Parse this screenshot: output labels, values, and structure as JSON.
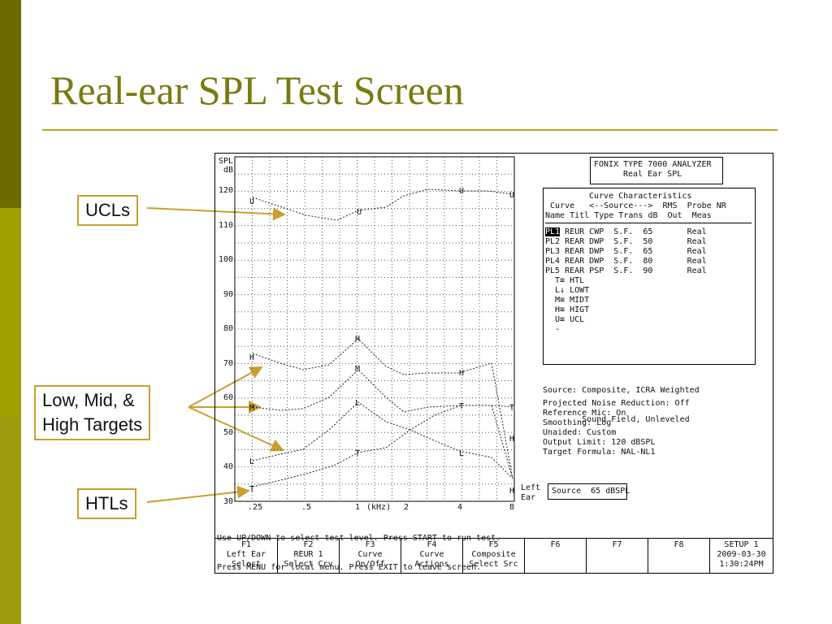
{
  "slide": {
    "title": "Real-ear SPL Test Screen",
    "accent_color": "#7a7a12",
    "callouts": {
      "ucls": "UCLs",
      "targets_line1": "Low, Mid, &",
      "targets_line2": "High Targets",
      "htls": "HTLs"
    }
  },
  "analyzer": {
    "header_line1": "FONIX TYPE 7000 ANALYZER",
    "header_line2": "Real Ear SPL",
    "y_axis": {
      "unit_line1": "SPL",
      "unit_line2": "dB",
      "ticks": [
        "120",
        "110",
        "100",
        "90",
        "80",
        "70",
        "60",
        "50",
        "40",
        "30"
      ]
    },
    "x_axis": {
      "ticks": [
        ".25",
        ".5",
        "1",
        "2",
        "4",
        "8"
      ],
      "unit": "(kHz)"
    },
    "curve_characteristics": {
      "title": "Curve Characteristics",
      "header_line1": " Curve   <--Source--->  RMS  Probe NR",
      "header_line2": "Name Titl Type Trans dB  Out  Meas",
      "rows": [
        {
          "name": "PL1",
          "rest": " REUR CWP  S.F.  65       Real"
        },
        {
          "name": "PL2",
          "rest": " REAR DWP  S.F.  50       Real"
        },
        {
          "name": "PL3",
          "rest": " REAR DWP  S.F.  65       Real"
        },
        {
          "name": "PL4",
          "rest": " REAR DWP  S.F.  80       Real"
        },
        {
          "name": "PL5",
          "rest": " REAR PSP  S.F.  90       Real"
        }
      ],
      "legend": [
        "  T≡ HTL",
        "  L↓ LOWT",
        "  M≡ MIDT",
        "  H≡ HIGT",
        "  U≡ UCL",
        "  -"
      ]
    },
    "source_lines": [
      "Source: Composite, ICRA Weighted",
      "        Sound Field, Unleveled"
    ],
    "settings": [
      "Projected Noise Reduction: Off",
      "Reference Mic: On",
      "Smoothing: Log",
      "Unaided: Custom",
      "Output Limit: 120 dBSPL",
      "Target Formula: NAL-NL1"
    ],
    "left_ear": [
      "Left",
      "Ear"
    ],
    "source_level": "Source  65 dBSPL",
    "instructions": [
      "Use UP/DOWN to select test level. Press START to run test.",
      "Press MENU for local menu. Press EXIT to leave screen."
    ],
    "fkeys": [
      {
        "key": "F1",
        "l1": "Left Ear",
        "l2": "Select"
      },
      {
        "key": "F2",
        "l1": "REUR 1",
        "l2": "Select Crv"
      },
      {
        "key": "F3",
        "l1": "Curve",
        "l2": "On/Off"
      },
      {
        "key": "F4",
        "l1": "Curve",
        "l2": "Actions"
      },
      {
        "key": "F5",
        "l1": "Composite",
        "l2": "Select Src"
      },
      {
        "key": "F6",
        "l1": "",
        "l2": ""
      },
      {
        "key": "F7",
        "l1": "",
        "l2": ""
      },
      {
        "key": "F8",
        "l1": "",
        "l2": ""
      }
    ],
    "setup": {
      "label": "SETUP 1",
      "date": "2009-03-30",
      "time": "1:30:24PM"
    }
  }
}
